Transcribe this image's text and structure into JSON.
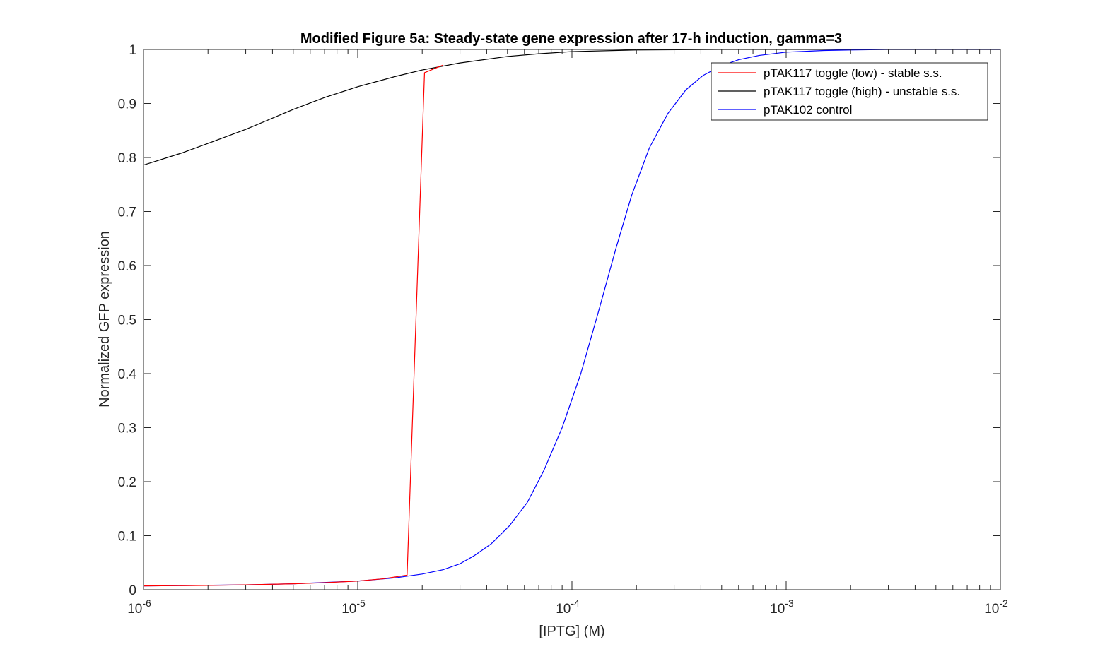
{
  "chart_data": {
    "type": "line",
    "title": "Modified Figure 5a: Steady-state gene expression after 17-h induction, gamma=3",
    "xlabel": "[IPTG] (M)",
    "ylabel": "Normalized GFP expression",
    "xscale": "log",
    "xlim": [
      1e-06,
      0.01
    ],
    "ylim": [
      0,
      1
    ],
    "x_ticks": [
      {
        "base": "10",
        "exp": "-6",
        "value": 1e-06
      },
      {
        "base": "10",
        "exp": "-5",
        "value": 1e-05
      },
      {
        "base": "10",
        "exp": "-4",
        "value": 0.0001
      },
      {
        "base": "10",
        "exp": "-3",
        "value": 0.001
      },
      {
        "base": "10",
        "exp": "-2",
        "value": 0.01
      }
    ],
    "y_ticks": [
      "0",
      "0.1",
      "0.2",
      "0.3",
      "0.4",
      "0.5",
      "0.6",
      "0.7",
      "0.8",
      "0.9",
      "1"
    ],
    "grid": false,
    "legend_position": "top-right",
    "series": [
      {
        "name": "pTAK117 toggle (low) - stable s.s.",
        "color": "#ff0000",
        "x": [
          1e-06,
          2e-06,
          3e-06,
          5e-06,
          7e-06,
          1e-05,
          1.3e-05,
          1.7e-05,
          2.05e-05,
          2.5e-05
        ],
        "y": [
          0.007,
          0.008,
          0.009,
          0.011,
          0.013,
          0.016,
          0.02,
          0.027,
          0.957,
          0.971
        ]
      },
      {
        "name": "pTAK117 toggle (high) - unstable s.s.",
        "color": "#000000",
        "x": [
          1e-06,
          1.5e-06,
          2e-06,
          3e-06,
          5e-06,
          7e-06,
          1e-05,
          1.5e-05,
          2e-05,
          3e-05,
          5e-05,
          7e-05,
          0.0001,
          0.0002,
          0.0005,
          0.001,
          0.01
        ],
        "y": [
          0.786,
          0.808,
          0.826,
          0.852,
          0.889,
          0.911,
          0.931,
          0.95,
          0.962,
          0.975,
          0.987,
          0.992,
          0.996,
          0.999,
          1.0,
          1.0,
          1.0
        ]
      },
      {
        "name": "pTAK102 control",
        "color": "#0000ff",
        "x": [
          1e-06,
          3e-06,
          5e-06,
          1e-05,
          1.5e-05,
          2e-05,
          2.5e-05,
          3e-05,
          3.5e-05,
          4.2e-05,
          5.1e-05,
          6.2e-05,
          7.4e-05,
          9e-05,
          0.00011,
          0.000132,
          0.00016,
          0.00019,
          0.00023,
          0.00028,
          0.00034,
          0.00041,
          0.0005,
          0.0006,
          0.00075,
          0.001,
          0.0015,
          0.002,
          0.003,
          0.005,
          0.01
        ],
        "y": [
          0.007,
          0.009,
          0.011,
          0.016,
          0.022,
          0.029,
          0.037,
          0.048,
          0.063,
          0.085,
          0.118,
          0.162,
          0.221,
          0.3,
          0.4,
          0.51,
          0.63,
          0.73,
          0.818,
          0.881,
          0.925,
          0.952,
          0.97,
          0.981,
          0.989,
          0.995,
          0.998,
          0.999,
          1.0,
          1.0,
          1.0
        ]
      }
    ]
  }
}
